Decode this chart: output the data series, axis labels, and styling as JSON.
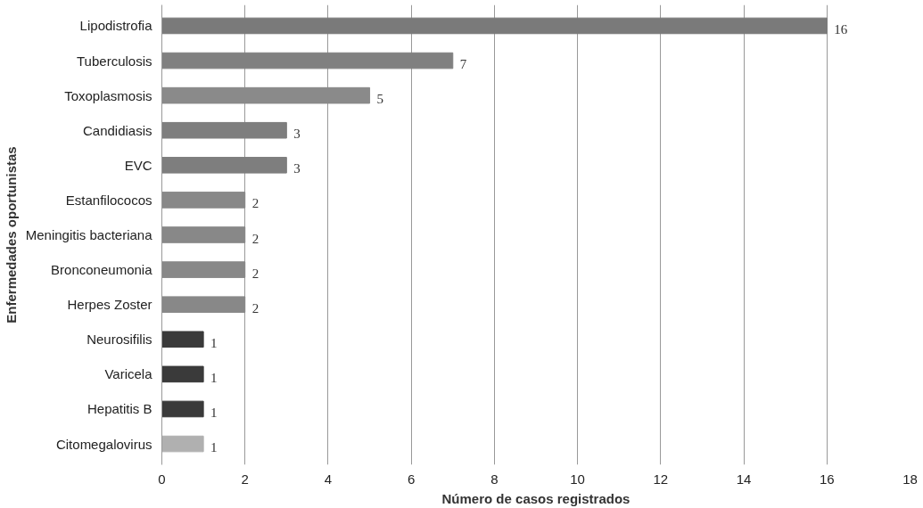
{
  "chart_data": {
    "type": "bar",
    "orientation": "horizontal",
    "xlabel": "Número de casos registrados",
    "ylabel": "Enfermedades oportunistas",
    "categories": [
      "Lipodistrofia",
      "Tuberculosis",
      "Toxoplasmosis",
      "Candidiasis",
      "EVC",
      "Estanfilococos",
      "Meningitis bacteriana",
      "Bronconeumonia",
      "Herpes Zoster",
      "Neurosifilis",
      "Varicela",
      "Hepatitis B",
      "Citomegalovirus"
    ],
    "values": [
      16,
      7,
      5,
      3,
      3,
      2,
      2,
      2,
      2,
      1,
      1,
      1,
      1
    ],
    "colors": [
      "#7a7a7a",
      "#808080",
      "#8a8a8a",
      "#7e7e7e",
      "#7e7e7e",
      "#888888",
      "#888888",
      "#888888",
      "#888888",
      "#3a3a3a",
      "#3a3a3a",
      "#3a3a3a",
      "#b0b0b0"
    ],
    "xlim": [
      0,
      18
    ],
    "xticks": [
      0,
      2,
      4,
      6,
      8,
      10,
      12,
      14,
      16,
      18
    ],
    "grid": "x",
    "data_labels": true
  }
}
